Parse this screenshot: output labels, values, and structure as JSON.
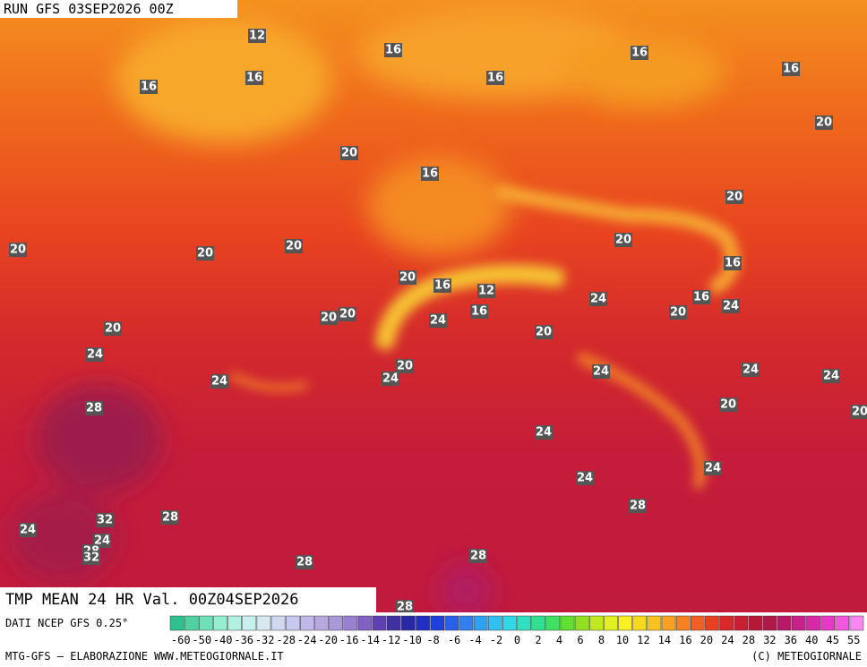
{
  "header": {
    "run": "RUN GFS 03SEP2026 00Z"
  },
  "map": {
    "title": "TMP MEAN 24 HR Val. 00Z04SEP2026",
    "contour_labels": [
      12,
      16,
      16,
      16,
      16,
      16,
      16,
      20,
      20,
      16,
      20,
      20,
      20,
      20,
      20,
      16,
      20,
      16,
      12,
      24,
      16,
      24,
      20,
      20,
      16,
      24,
      20,
      20,
      20,
      24,
      20,
      24,
      24,
      24,
      24,
      24,
      28,
      20,
      20,
      24,
      24,
      24,
      28,
      28,
      32,
      24,
      24,
      28,
      32,
      28,
      28,
      28
    ]
  },
  "legend": {
    "ticks": [
      "-60",
      "-50",
      "-40",
      "-36",
      "-32",
      "-28",
      "-24",
      "-20",
      "-16",
      "-14",
      "-12",
      "-10",
      "-8",
      "-6",
      "-4",
      "-2",
      "0",
      "2",
      "4",
      "6",
      "8",
      "10",
      "12",
      "14",
      "16",
      "20",
      "24",
      "28",
      "32",
      "36",
      "40",
      "45",
      "55"
    ]
  },
  "footer": {
    "source": "DATI NCEP GFS 0.25°",
    "credit": "MTG-GFS — ELABORAZIONE WWW.METEOGIORNALE.IT",
    "copyright": "(C) METEOGIORNALE"
  }
}
